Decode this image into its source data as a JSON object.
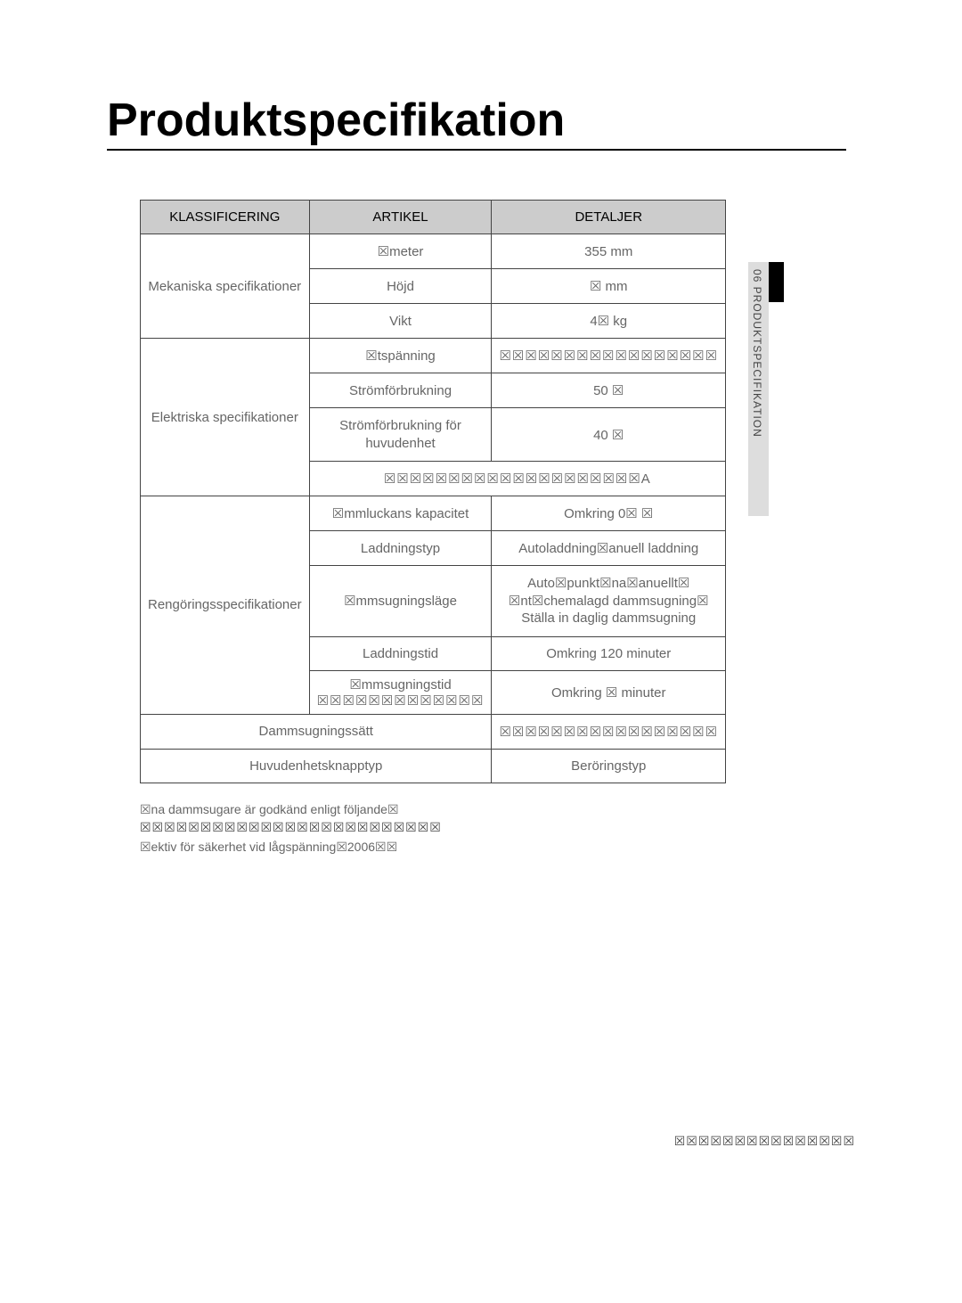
{
  "title": "Produktspecifikation",
  "sideTab": "06  PRODUKTSPECIFIKATION",
  "table": {
    "headers": {
      "klass": "KLASSIFICERING",
      "artikel": "ARTIKEL",
      "detaljer": "DETALJER"
    },
    "mekaniska": {
      "label": "Mekaniska specifikationer",
      "diameter_item": "☒meter",
      "diameter_val": "355 mm",
      "hojd_item": "Höjd",
      "hojd_val": "☒ mm",
      "vikt_item": "Vikt",
      "vikt_val": "4☒ kg"
    },
    "elektriska": {
      "label": "Elektriska specifikationer",
      "spanning_item": "☒tspänning",
      "spanning_val": "☒☒☒☒☒☒☒☒☒☒☒☒☒☒☒☒☒",
      "forbrukning_item": "Strömförbrukning",
      "forbrukning_val": "50 ☒",
      "huvud_item": "Strömförbrukning för huvudenhet",
      "huvud_val": "40 ☒",
      "battery_row": "☒☒☒☒☒☒☒☒☒☒☒☒☒☒☒☒☒☒☒☒A"
    },
    "rengoring": {
      "label": "Rengöringsspecifikationer",
      "kapacitet_item": "☒mmluckans kapacitet",
      "kapacitet_val": "Omkring 0☒ ☒",
      "laddtyp_item": "Laddningstyp",
      "laddtyp_val": "Autoladdning☒anuell laddning",
      "lage_item": "☒mmsugningsläge",
      "lage_val": "Auto☒punkt☒na☒anuellt☒ ☒nt☒chemalagd dammsugning☒ Ställa in daglig dammsugning",
      "laddtid_item": "Laddningstid",
      "laddtid_val": "Omkring 120 minuter",
      "sugtid_item": "☒mmsugningstid",
      "sugtid_val": "Omkring ☒ minuter",
      "sugtid_overlay": "☒☒☒☒☒☒☒☒☒☒☒☒☒"
    },
    "bottom": {
      "satt_label": "Dammsugningssätt",
      "satt_val": "☒☒☒☒☒☒☒☒☒☒☒☒☒☒☒☒☒",
      "knapp_label": "Huvudenhetsknapptyp",
      "knapp_val": "Beröringstyp"
    }
  },
  "footer": {
    "line1": "☒na dammsugare är godkänd enligt följande☒",
    "line2": "☒☒☒☒☒☒☒☒☒☒☒☒☒☒☒☒☒☒☒☒☒☒☒☒☒",
    "line3": "☒ektiv för säkerhet vid lågspänning☒2006☒☒",
    "pagenum": "☒☒☒☒☒☒☒☒☒☒☒☒☒☒☒"
  },
  "colors": {
    "header_bg": "#cccccc",
    "border": "#444444",
    "text_muted": "#666666",
    "page_bg": "#ffffff"
  }
}
